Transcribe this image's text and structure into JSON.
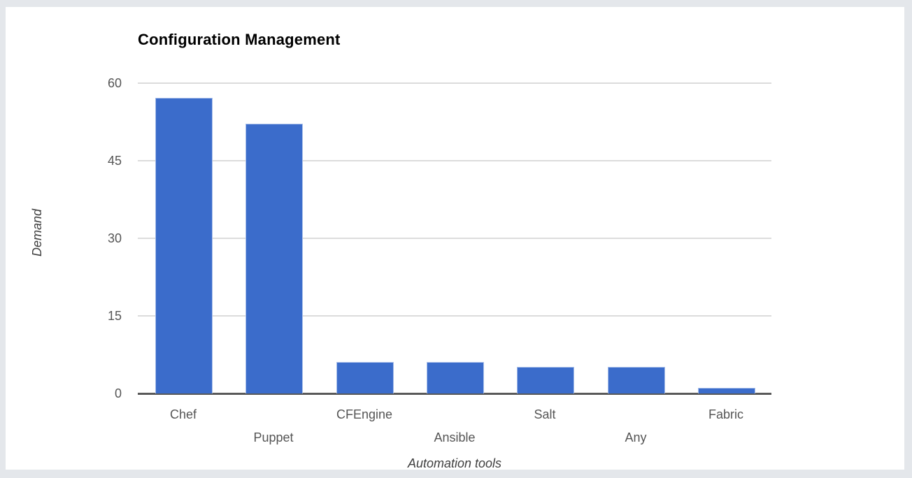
{
  "page": {
    "background": "#E4E7EB",
    "panel_background": "#FFFFFF"
  },
  "chart_data": {
    "type": "bar",
    "title": "Configuration Management",
    "xlabel": "Automation tools",
    "ylabel": "Demand",
    "categories": [
      "Chef",
      "Puppet",
      "CFEngine",
      "Ansible",
      "Salt",
      "Any",
      "Fabric"
    ],
    "values": [
      57,
      52,
      6,
      6,
      5,
      5,
      1
    ],
    "yticks": [
      0,
      15,
      30,
      45,
      60
    ],
    "ylim": [
      0,
      60
    ],
    "grid": true,
    "legend_position": "none",
    "colors": {
      "bar_fill": "#3B6CCB",
      "bar_stroke": "#A9BFE9",
      "gridline": "#DCDCDC",
      "axis_line": "#595959",
      "tick_label": "#555555",
      "axis_title": "#3F3F3F",
      "title": "#000000"
    }
  }
}
